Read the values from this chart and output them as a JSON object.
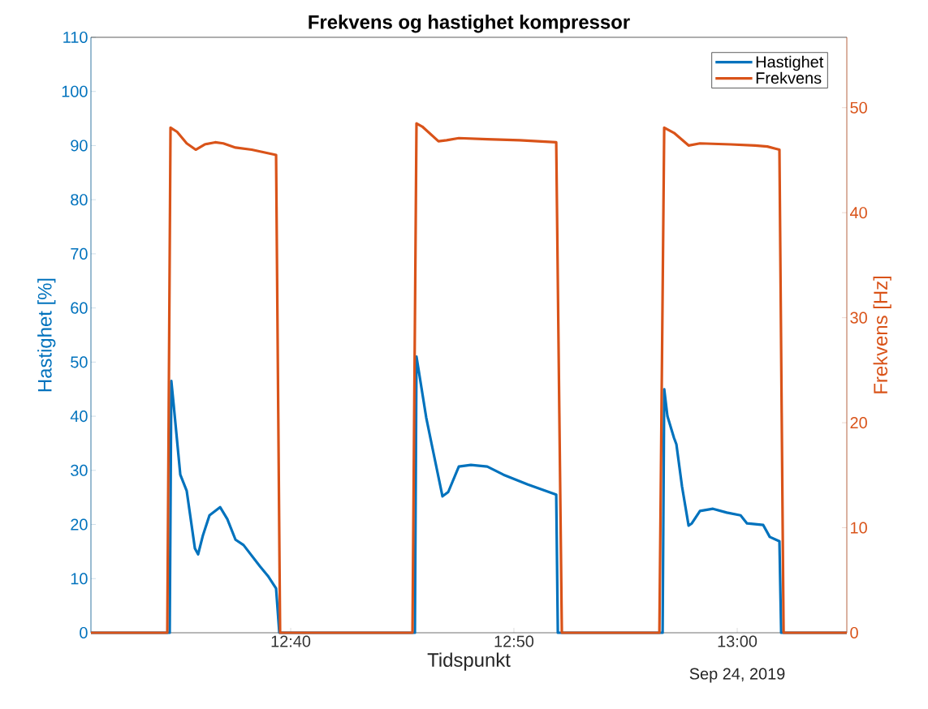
{
  "chart_data": {
    "type": "line",
    "title": "Frekvens og hastighet kompressor",
    "xlabel": "Tidspunkt",
    "ylabel": "Hastighet [%]",
    "y2label": "Frekvens [Hz]",
    "annotations": [
      "Sep 24, 2019"
    ],
    "xlim": [
      12.5176,
      13.0818
    ],
    "xticks": [
      {
        "value": 12.6667,
        "label": "12:40"
      },
      {
        "value": 12.8333,
        "label": "12:50"
      },
      {
        "value": 13.0,
        "label": "13:00"
      }
    ],
    "ylim": [
      0,
      110
    ],
    "yticks": [
      0,
      10,
      20,
      30,
      40,
      50,
      60,
      70,
      80,
      90,
      100,
      110
    ],
    "y2lim": [
      0,
      56.7
    ],
    "y2ticks": [
      0,
      10,
      20,
      30,
      40,
      50
    ],
    "legend": "top right",
    "series": [
      {
        "name": "Hastighet",
        "color": "#0072bd",
        "x": [
          12.5176,
          12.5764,
          12.5776,
          12.5794,
          12.5843,
          12.5891,
          12.5952,
          12.5976,
          12.6012,
          12.6061,
          12.614,
          12.6194,
          12.6255,
          12.6315,
          12.6437,
          12.6497,
          12.6558,
          12.6582,
          12.7594,
          12.7606,
          12.7679,
          12.7722,
          12.78,
          12.7843,
          12.7922,
          12.8012,
          12.8134,
          12.8255,
          12.8437,
          12.8649,
          12.8661,
          12.9443,
          12.9455,
          12.9479,
          12.9528,
          12.9546,
          12.9588,
          12.9637,
          12.9661,
          12.9722,
          12.9819,
          12.9922,
          13.0025,
          13.0073,
          13.0194,
          13.0243,
          13.0315,
          13.0328,
          13.0818
        ],
        "values": [
          0,
          0,
          46.5,
          42,
          29.2,
          26.2,
          15.6,
          14.5,
          18,
          21.7,
          23.2,
          21,
          17.2,
          16.2,
          12.3,
          10.5,
          8.2,
          0,
          0,
          51,
          39.7,
          34.5,
          25.2,
          26,
          30.7,
          31,
          30.7,
          29.2,
          27.4,
          25.5,
          0,
          0,
          45,
          40,
          36,
          34.8,
          27,
          19.8,
          20.2,
          22.5,
          22.9,
          22.2,
          21.7,
          20.2,
          19.9,
          17.7,
          16.9,
          0,
          0
        ]
      },
      {
        "name": "Frekvens",
        "color": "#d95319",
        "axis": "y2",
        "x": [
          12.5176,
          12.5746,
          12.577,
          12.5819,
          12.5891,
          12.5958,
          12.6025,
          12.6103,
          12.6164,
          12.6255,
          12.6376,
          12.6558,
          12.6588,
          12.7576,
          12.7606,
          12.7649,
          12.777,
          12.7831,
          12.7922,
          12.8134,
          12.8376,
          12.8649,
          12.8691,
          12.9419,
          12.9455,
          12.9528,
          12.9637,
          12.9722,
          12.9952,
          13.0134,
          13.0225,
          13.0285,
          13.0315,
          13.0346,
          13.0818
        ],
        "values": [
          0,
          0,
          48.1,
          47.7,
          46.6,
          46.0,
          46.5,
          46.7,
          46.6,
          46.2,
          46.0,
          45.5,
          0,
          0,
          48.5,
          48.2,
          46.8,
          46.9,
          47.1,
          47.0,
          46.9,
          46.7,
          0,
          0,
          48.1,
          47.6,
          46.4,
          46.6,
          46.5,
          46.4,
          46.3,
          46.1,
          46.0,
          0,
          0
        ]
      }
    ]
  }
}
